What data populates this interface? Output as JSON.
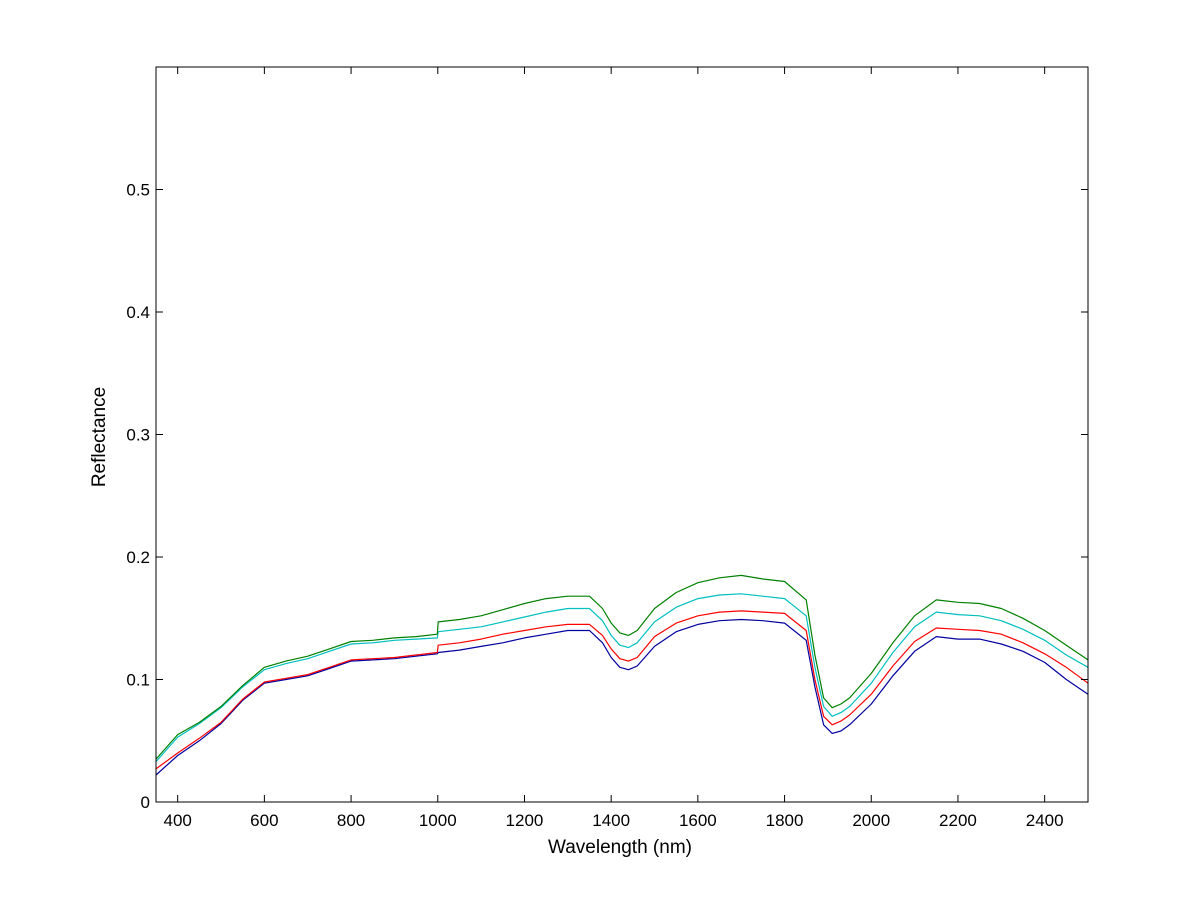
{
  "chart_data": {
    "type": "line",
    "title": "",
    "xlabel": "Wavelength (nm)",
    "ylabel": "Reflectance",
    "xlim": [
      350,
      2500
    ],
    "ylim": [
      0,
      0.6
    ],
    "x_ticks": [
      400,
      600,
      800,
      1000,
      1200,
      1400,
      1600,
      1800,
      2000,
      2200,
      2400
    ],
    "y_ticks": [
      0,
      0.1,
      0.2,
      0.3,
      0.4,
      0.5
    ],
    "y_tick_labels": [
      "0",
      "0.1",
      "0.2",
      "0.3",
      "0.4",
      "0.5"
    ],
    "grid": false,
    "legend": "none",
    "x": [
      350,
      400,
      450,
      500,
      550,
      600,
      650,
      700,
      750,
      800,
      850,
      900,
      950,
      999,
      1001,
      1050,
      1100,
      1150,
      1200,
      1250,
      1300,
      1350,
      1380,
      1400,
      1420,
      1440,
      1460,
      1500,
      1550,
      1600,
      1650,
      1700,
      1750,
      1800,
      1850,
      1870,
      1890,
      1910,
      1930,
      1950,
      2000,
      2050,
      2100,
      2150,
      2200,
      2250,
      2300,
      2350,
      2400,
      2450,
      2500
    ],
    "series": [
      {
        "color": "#008000",
        "values": [
          0.035,
          0.055,
          0.065,
          0.078,
          0.095,
          0.11,
          0.115,
          0.119,
          0.125,
          0.131,
          0.132,
          0.134,
          0.135,
          0.137,
          0.147,
          0.149,
          0.152,
          0.157,
          0.162,
          0.166,
          0.168,
          0.168,
          0.158,
          0.146,
          0.138,
          0.136,
          0.14,
          0.158,
          0.171,
          0.179,
          0.183,
          0.185,
          0.182,
          0.18,
          0.165,
          0.12,
          0.085,
          0.077,
          0.08,
          0.085,
          0.105,
          0.13,
          0.152,
          0.165,
          0.163,
          0.162,
          0.158,
          0.15,
          0.14,
          0.128,
          0.116
        ]
      },
      {
        "color": "#00BFBF",
        "values": [
          0.033,
          0.053,
          0.064,
          0.077,
          0.094,
          0.108,
          0.113,
          0.117,
          0.123,
          0.129,
          0.13,
          0.132,
          0.133,
          0.134,
          0.139,
          0.141,
          0.143,
          0.147,
          0.151,
          0.155,
          0.158,
          0.158,
          0.148,
          0.136,
          0.128,
          0.126,
          0.13,
          0.147,
          0.159,
          0.166,
          0.169,
          0.17,
          0.168,
          0.166,
          0.152,
          0.11,
          0.078,
          0.07,
          0.073,
          0.078,
          0.097,
          0.122,
          0.143,
          0.155,
          0.153,
          0.152,
          0.148,
          0.141,
          0.132,
          0.12,
          0.11
        ]
      },
      {
        "color": "#FF0000",
        "values": [
          0.027,
          0.04,
          0.052,
          0.065,
          0.084,
          0.098,
          0.101,
          0.104,
          0.11,
          0.116,
          0.117,
          0.118,
          0.12,
          0.122,
          0.128,
          0.13,
          0.133,
          0.137,
          0.14,
          0.143,
          0.145,
          0.145,
          0.136,
          0.125,
          0.117,
          0.115,
          0.118,
          0.135,
          0.146,
          0.152,
          0.155,
          0.156,
          0.155,
          0.154,
          0.14,
          0.1,
          0.07,
          0.063,
          0.066,
          0.071,
          0.088,
          0.111,
          0.131,
          0.142,
          0.141,
          0.14,
          0.137,
          0.13,
          0.121,
          0.11,
          0.097
        ]
      },
      {
        "color": "#0000A0",
        "values": [
          0.022,
          0.038,
          0.05,
          0.064,
          0.083,
          0.097,
          0.1,
          0.103,
          0.109,
          0.115,
          0.116,
          0.117,
          0.119,
          0.121,
          0.122,
          0.124,
          0.127,
          0.13,
          0.134,
          0.137,
          0.14,
          0.14,
          0.13,
          0.118,
          0.11,
          0.108,
          0.111,
          0.127,
          0.139,
          0.145,
          0.148,
          0.149,
          0.148,
          0.146,
          0.132,
          0.094,
          0.063,
          0.056,
          0.058,
          0.063,
          0.08,
          0.103,
          0.123,
          0.135,
          0.133,
          0.133,
          0.129,
          0.123,
          0.114,
          0.1,
          0.088
        ]
      }
    ]
  }
}
